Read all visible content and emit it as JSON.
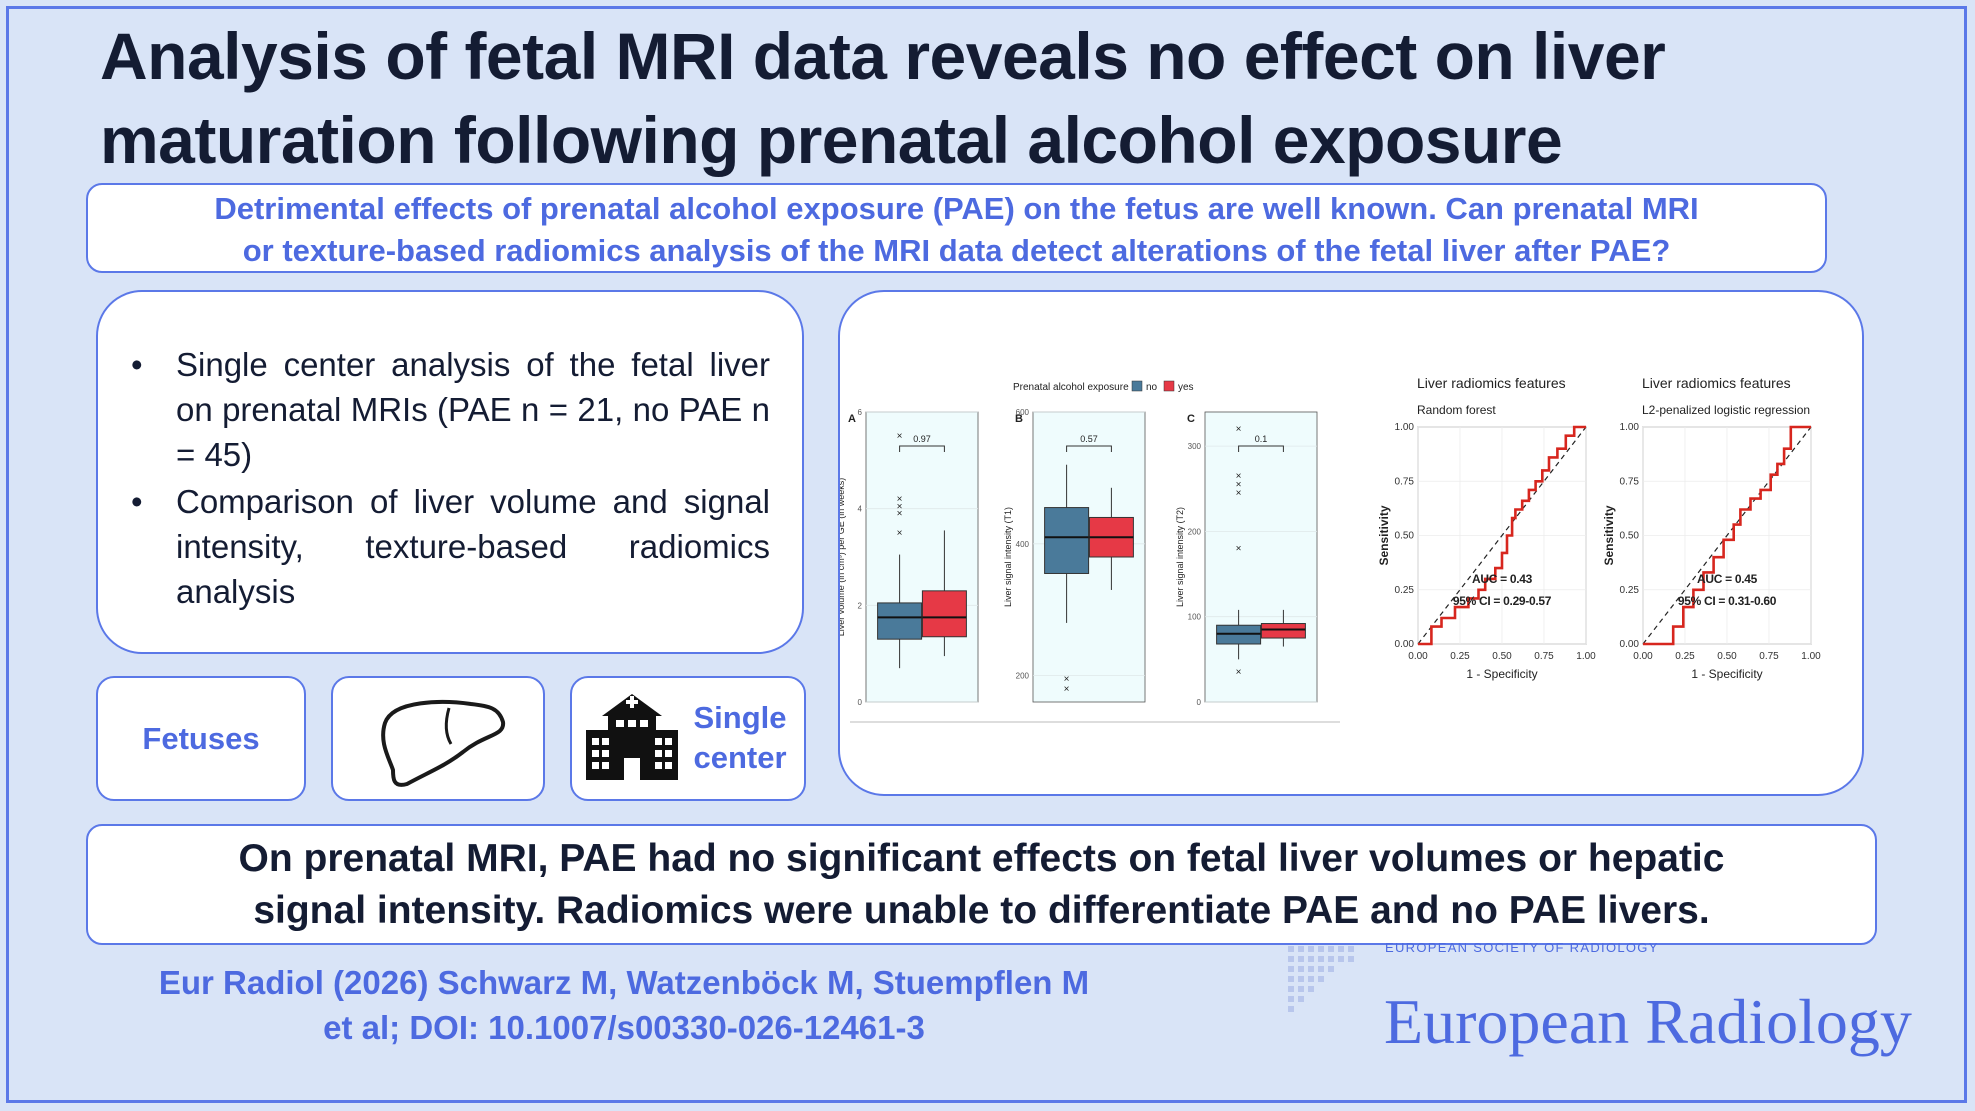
{
  "title_line1": "Analysis of fetal MRI data reveals no effect on liver",
  "title_line2": "maturation following prenatal alcohol exposure",
  "question_line1": "Detrimental effects of prenatal alcohol exposure (PAE) on the fetus are well known. Can prenatal MRI",
  "question_line2": "or texture-based radiomics analysis of the MRI data detect alterations of the fetal liver after PAE?",
  "bullets": [
    "Single center analysis of the fetal liver on prenatal MRIs (PAE n = 21, no PAE n = 45)",
    "Comparison of liver volume and signal intensity, texture-based radiomics analysis"
  ],
  "cards": {
    "fetuses_label": "Fetuses",
    "center_line1": "Single",
    "center_line2": "center"
  },
  "icons": [
    "liver-icon",
    "hospital-icon"
  ],
  "colors": {
    "accent": "#4d6ae0",
    "no_pae": "#4a7a9a",
    "pae": "#e63946",
    "roc": "#d7261e"
  },
  "chart_data": [
    {
      "type": "box",
      "legend_title": "Prenatal alcohol exposure",
      "legend": [
        "no",
        "yes"
      ],
      "panels": [
        {
          "label": "A",
          "ylabel": "Liver volume (in cm³) per GE (in weeks)",
          "yticks": [
            "0",
            "2",
            "4",
            "6"
          ],
          "ylim": [
            0,
            6
          ],
          "p_value": "0.97",
          "groups": [
            {
              "name": "no",
              "whisker_low": 0.7,
              "q1": 1.3,
              "median": 1.75,
              "q3": 2.05,
              "whisker_high": 3.05,
              "outliers": [
                3.5,
                3.9,
                4.05,
                4.2,
                5.5
              ]
            },
            {
              "name": "yes",
              "whisker_low": 0.95,
              "q1": 1.35,
              "median": 1.75,
              "q3": 2.3,
              "whisker_high": 3.55,
              "outliers": []
            }
          ]
        },
        {
          "label": "B",
          "ylabel": "Liver signal intensity (T1)",
          "yticks": [
            "200",
            "400",
            "600"
          ],
          "ylim": [
            160,
            600
          ],
          "p_value": "0.57",
          "groups": [
            {
              "name": "no",
              "whisker_low": 280,
              "q1": 355,
              "median": 410,
              "q3": 455,
              "whisker_high": 520,
              "outliers": [
                195,
                180
              ]
            },
            {
              "name": "yes",
              "whisker_low": 330,
              "q1": 380,
              "median": 410,
              "q3": 440,
              "whisker_high": 485,
              "outliers": []
            }
          ]
        },
        {
          "label": "C",
          "ylabel": "Liver signal intensity (T2)",
          "yticks": [
            "0",
            "100",
            "200",
            "300"
          ],
          "ylim": [
            0,
            340
          ],
          "p_value": "0.1",
          "groups": [
            {
              "name": "no",
              "whisker_low": 50,
              "q1": 68,
              "median": 80,
              "q3": 90,
              "whisker_high": 108,
              "outliers": [
                35,
                180,
                245,
                255,
                265,
                320
              ]
            },
            {
              "name": "yes",
              "whisker_low": 65,
              "q1": 75,
              "median": 85,
              "q3": 92,
              "whisker_high": 108,
              "outliers": []
            }
          ]
        }
      ]
    },
    {
      "type": "line",
      "title": "Liver radiomics features",
      "subtitle": "Random forest",
      "xlabel": "1 - Specificity",
      "ylabel": "Sensitivity",
      "xticks": [
        "0.00",
        "0.25",
        "0.50",
        "0.75",
        "1.00"
      ],
      "yticks": [
        "0.00",
        "0.25",
        "0.50",
        "0.75",
        "1.00"
      ],
      "annotation1": "AUC = 0.43",
      "annotation2": "95% CI = 0.29-0.57",
      "x": [
        0,
        0.08,
        0.08,
        0.14,
        0.14,
        0.22,
        0.22,
        0.3,
        0.3,
        0.36,
        0.36,
        0.4,
        0.4,
        0.46,
        0.46,
        0.5,
        0.5,
        0.53,
        0.53,
        0.56,
        0.56,
        0.58,
        0.58,
        0.62,
        0.62,
        0.66,
        0.66,
        0.7,
        0.7,
        0.74,
        0.74,
        0.78,
        0.78,
        0.83,
        0.83,
        0.88,
        0.88,
        0.93,
        0.93,
        1.0
      ],
      "y": [
        0,
        0,
        0.08,
        0.08,
        0.12,
        0.12,
        0.17,
        0.17,
        0.21,
        0.21,
        0.25,
        0.25,
        0.3,
        0.3,
        0.35,
        0.35,
        0.42,
        0.42,
        0.5,
        0.5,
        0.58,
        0.58,
        0.62,
        0.62,
        0.66,
        0.66,
        0.71,
        0.71,
        0.75,
        0.75,
        0.8,
        0.8,
        0.86,
        0.86,
        0.9,
        0.9,
        0.96,
        0.96,
        1.0,
        1.0
      ]
    },
    {
      "type": "line",
      "title": "Liver radiomics features",
      "subtitle": "L2-penalized logistic regression",
      "xlabel": "1 - Specificity",
      "ylabel": "Sensitivity",
      "xticks": [
        "0.00",
        "0.25",
        "0.50",
        "0.75",
        "1.00"
      ],
      "yticks": [
        "0.00",
        "0.25",
        "0.50",
        "0.75",
        "1.00"
      ],
      "annotation1": "AUC = 0.45",
      "annotation2": "95% CI = 0.31-0.60",
      "x": [
        0,
        0.18,
        0.18,
        0.24,
        0.24,
        0.3,
        0.3,
        0.36,
        0.36,
        0.42,
        0.42,
        0.48,
        0.48,
        0.54,
        0.54,
        0.58,
        0.58,
        0.64,
        0.64,
        0.7,
        0.7,
        0.76,
        0.76,
        0.8,
        0.8,
        0.84,
        0.84,
        0.88,
        0.88,
        0.94,
        0.94,
        1.0
      ],
      "y": [
        0,
        0,
        0.08,
        0.08,
        0.17,
        0.17,
        0.25,
        0.25,
        0.33,
        0.33,
        0.4,
        0.4,
        0.48,
        0.48,
        0.55,
        0.55,
        0.62,
        0.62,
        0.67,
        0.67,
        0.71,
        0.71,
        0.78,
        0.78,
        0.83,
        0.83,
        0.9,
        0.9,
        1.0,
        1.0,
        1.0,
        1.0
      ]
    }
  ],
  "conclusion_line1": "On prenatal MRI, PAE had no significant effects on fetal liver volumes or hepatic",
  "conclusion_line2": "signal intensity. Radiomics were unable to differentiate PAE and no PAE livers.",
  "citation_line1": "Eur Radiol (2026) Schwarz M, Watzenböck M, Stuempflen M",
  "citation_line2": "et al; DOI: 10.1007/s00330-026-12461-3",
  "brand_small": "EUROPEAN SOCIETY OF RADIOLOGY",
  "brand_large": "European Radiology"
}
